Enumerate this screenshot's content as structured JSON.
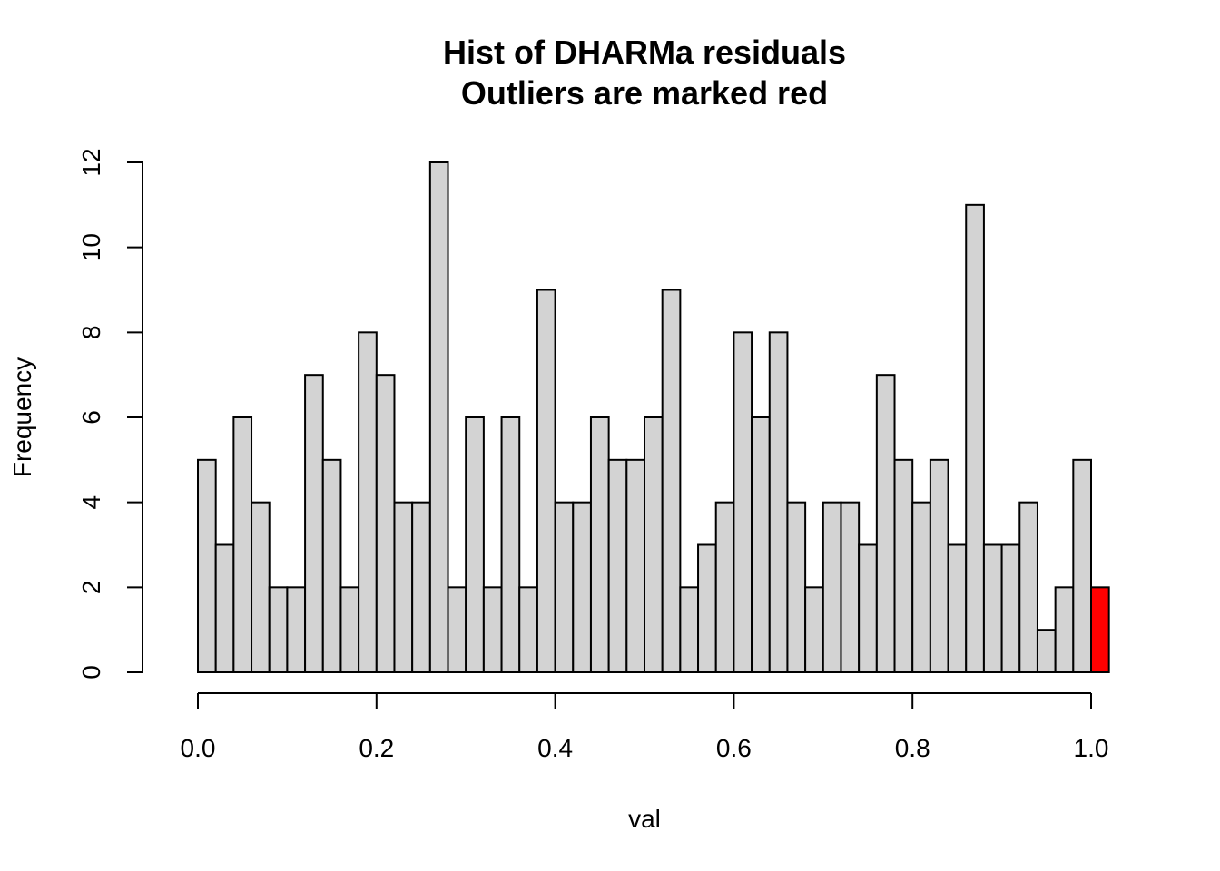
{
  "chart_data": {
    "type": "bar",
    "title": "Hist of DHARMa residuals",
    "subtitle": "Outliers are marked red",
    "xlabel": "val",
    "ylabel": "Frequency",
    "bin_width": 0.02,
    "x_start": 0,
    "xlim": [
      0,
      1.02
    ],
    "ylim": [
      0,
      12
    ],
    "x_ticks": [
      "0.0",
      "0.2",
      "0.4",
      "0.6",
      "0.8",
      "1.0"
    ],
    "y_ticks": [
      "0",
      "2",
      "4",
      "6",
      "8",
      "10",
      "12"
    ],
    "values": [
      5,
      3,
      6,
      4,
      2,
      2,
      7,
      5,
      2,
      8,
      7,
      4,
      4,
      12,
      2,
      6,
      2,
      6,
      2,
      9,
      4,
      4,
      6,
      5,
      5,
      6,
      9,
      2,
      3,
      4,
      8,
      6,
      8,
      4,
      2,
      4,
      4,
      3,
      7,
      5,
      4,
      5,
      3,
      11,
      3,
      3,
      4,
      1,
      2,
      5,
      2
    ],
    "outlier_bins": [
      50
    ],
    "colors": {
      "bar_fill": "#d3d3d3",
      "outlier_fill": "#ff0000",
      "stroke": "#000000"
    },
    "grid": false
  }
}
